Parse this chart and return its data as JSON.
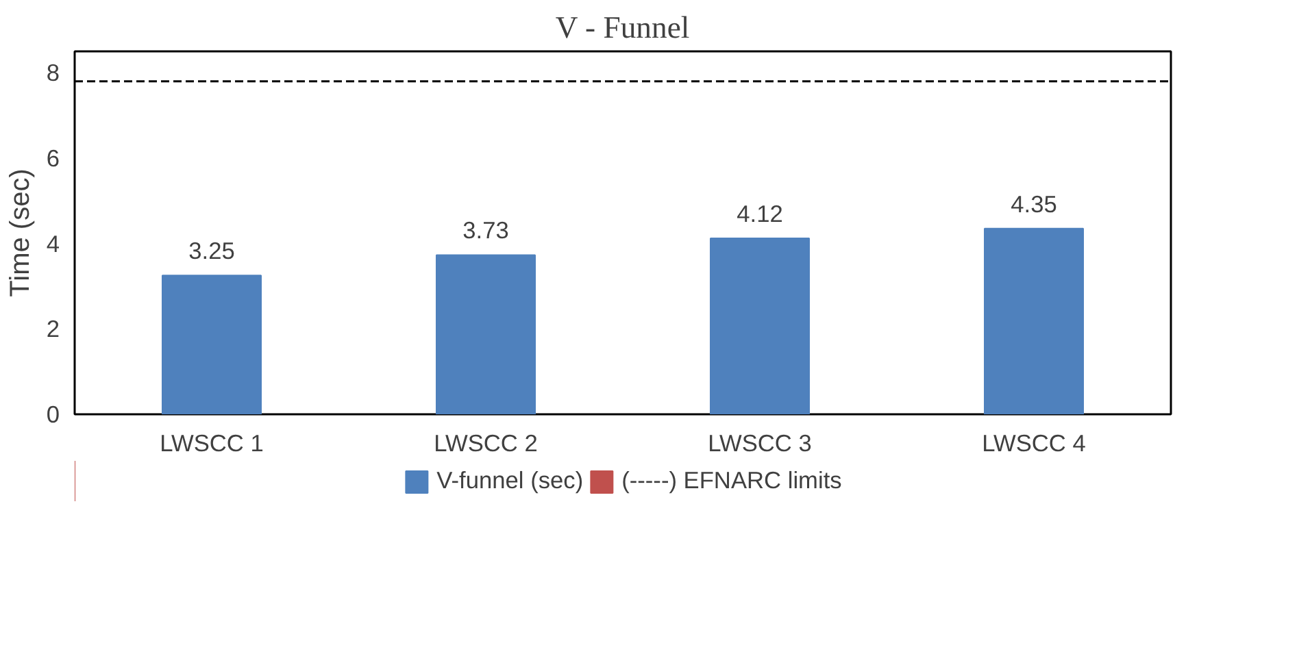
{
  "chart_data": {
    "type": "bar",
    "title": "V - Funnel",
    "ylabel": "Time (sec)",
    "categories": [
      "LWSCC 1",
      "LWSCC 2",
      "LWSCC 3",
      "LWSCC 4"
    ],
    "series": [
      {
        "name": "V-funnel (sec)",
        "color": "#4f81bd",
        "values": [
          3.25,
          3.73,
          4.12,
          4.35
        ]
      },
      {
        "name": "(-----) EFNARC limits",
        "color": "#c0504d",
        "values": [
          null,
          null,
          null,
          null
        ]
      }
    ],
    "ylim": [
      0,
      8.5
    ],
    "yticks": [
      0,
      2,
      4,
      6,
      8
    ],
    "ref_lines": [
      {
        "axis": "y",
        "value": 7.8,
        "color": "#000000",
        "line_style": "dashed"
      }
    ],
    "data_labels": true,
    "grid": false,
    "legend": "bottom"
  }
}
